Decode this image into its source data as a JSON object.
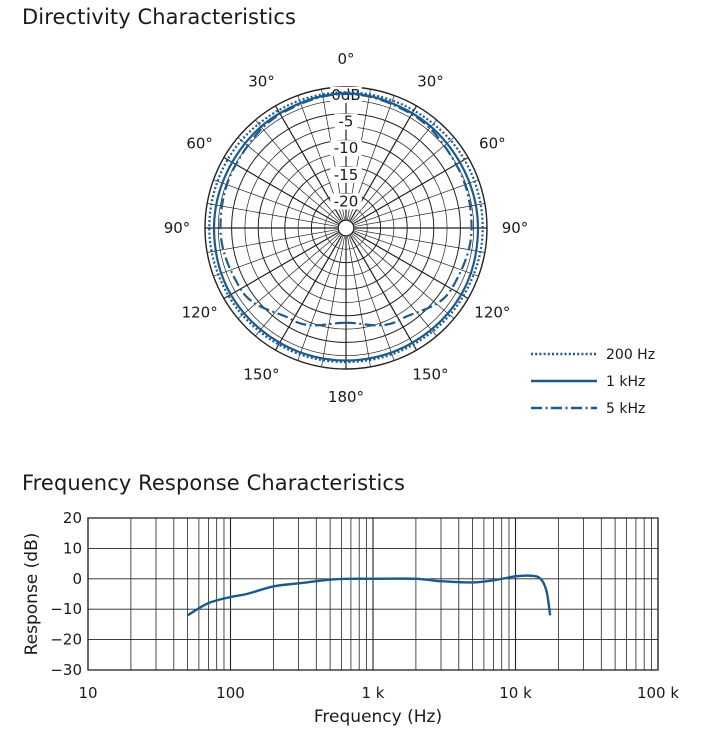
{
  "chart_data": [
    {
      "type": "polar",
      "title": "Directivity Characteristics",
      "radial_unit": "dB",
      "radial_range": [
        -25,
        0
      ],
      "radial_ticks": [
        "0dB",
        "-5",
        "-10",
        "-15",
        "-20"
      ],
      "angle_labels": [
        {
          "angle": 0,
          "text": "0°"
        },
        {
          "angle": 30,
          "text": "30°"
        },
        {
          "angle": -30,
          "text": "30°"
        },
        {
          "angle": 60,
          "text": "60°"
        },
        {
          "angle": -60,
          "text": "60°"
        },
        {
          "angle": 90,
          "text": "90°"
        },
        {
          "angle": -90,
          "text": "90°"
        },
        {
          "angle": 120,
          "text": "120°"
        },
        {
          "angle": -120,
          "text": "120°"
        },
        {
          "angle": 150,
          "text": "150°"
        },
        {
          "angle": -150,
          "text": "150°"
        },
        {
          "angle": 180,
          "text": "180°"
        }
      ],
      "series": [
        {
          "name": "200 Hz",
          "style": "dotted",
          "angles": [
            0,
            30,
            60,
            90,
            120,
            150,
            180
          ],
          "values": [
            -1.0,
            -1.0,
            -0.8,
            -0.8,
            -1.0,
            -1.2,
            -1.3
          ]
        },
        {
          "name": "1 kHz",
          "style": "solid",
          "angles": [
            0,
            30,
            60,
            90,
            120,
            150,
            180
          ],
          "values": [
            -1.2,
            -1.6,
            -1.8,
            -1.7,
            -1.5,
            -1.6,
            -1.6
          ]
        },
        {
          "name": "5 kHz",
          "style": "dashdot",
          "angles": [
            0,
            30,
            60,
            90,
            120,
            150,
            180
          ],
          "values": [
            -1.3,
            -1.8,
            -2.6,
            -2.9,
            -3.6,
            -6.5,
            -8.7
          ]
        }
      ],
      "legend": "bottom-right"
    },
    {
      "type": "line",
      "title": "Frequency Response Characteristics",
      "xlabel": "Frequency (Hz)",
      "ylabel": "Response (dB)",
      "xscale": "log",
      "xlim": [
        10,
        100000
      ],
      "ylim": [
        -30,
        20
      ],
      "x_ticks": [
        {
          "value": 10,
          "label": "10"
        },
        {
          "value": 100,
          "label": "100"
        },
        {
          "value": 1000,
          "label": "1 k"
        },
        {
          "value": 10000,
          "label": "10 k"
        },
        {
          "value": 100000,
          "label": "100 k"
        }
      ],
      "y_ticks": [
        {
          "value": 20,
          "label": "20"
        },
        {
          "value": 10,
          "label": "10"
        },
        {
          "value": 0,
          "label": "0"
        },
        {
          "value": -10,
          "label": "−10"
        },
        {
          "value": -20,
          "label": "−20"
        },
        {
          "value": -30,
          "label": "−30"
        }
      ],
      "series": [
        {
          "name": "Response",
          "x": [
            50,
            70,
            100,
            130,
            200,
            300,
            500,
            700,
            1000,
            2000,
            3000,
            5000,
            7000,
            10000,
            13000,
            15000,
            16500,
            17500
          ],
          "y": [
            -12,
            -8,
            -6,
            -5,
            -2.5,
            -1.5,
            -0.3,
            0,
            0,
            0,
            -0.8,
            -1.2,
            -0.5,
            0.8,
            1.0,
            0,
            -4,
            -12
          ]
        }
      ]
    }
  ],
  "colors": {
    "series": "#1b5a8e",
    "grid": "#222222",
    "text": "#1a1a1a"
  }
}
